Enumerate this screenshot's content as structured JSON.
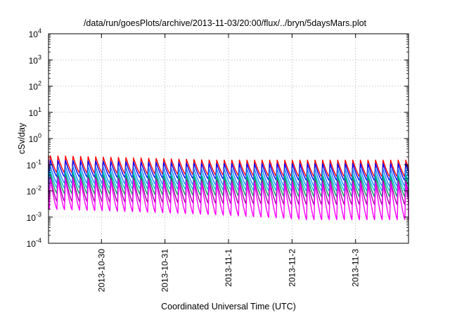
{
  "chart_data": {
    "type": "line",
    "title": "/data/run/goesPlots/archive/2013-11-03/20:00/flux/../bryn/5daysMars.plot",
    "xlabel": "Coordinated Universal Time (UTC)",
    "ylabel": "cSv/day",
    "yscale": "log",
    "ylim": [
      0.0001,
      10000
    ],
    "xlim": [
      "2013-10-29T04:00",
      "2013-11-03T20:00"
    ],
    "grid": true,
    "legend": "none",
    "y_ticks": [
      {
        "base": "10",
        "exp": "-4",
        "value": 0.0001
      },
      {
        "base": "10",
        "exp": "-3",
        "value": 0.001
      },
      {
        "base": "10",
        "exp": "-2",
        "value": 0.01
      },
      {
        "base": "10",
        "exp": "-1",
        "value": 0.1
      },
      {
        "base": "10",
        "exp": "0",
        "value": 1
      },
      {
        "base": "10",
        "exp": "1",
        "value": 10
      },
      {
        "base": "10",
        "exp": "2",
        "value": 100
      },
      {
        "base": "10",
        "exp": "3",
        "value": 1000
      },
      {
        "base": "10",
        "exp": "4",
        "value": 10000
      }
    ],
    "x_ticks": [
      {
        "label": "2013-10-30",
        "value": "2013-10-30T00:00"
      },
      {
        "label": "2013-10-31",
        "value": "2013-10-31T00:00"
      },
      {
        "label": "2013-11-1",
        "value": "2013-11-01T00:00"
      },
      {
        "label": "2013-11-2",
        "value": "2013-11-02T00:00"
      },
      {
        "label": "2013-11-3",
        "value": "2013-11-03T00:00"
      }
    ],
    "periodic_pattern": {
      "cycles_per_day": 8.4,
      "first_rise": "2013-10-29T04:20",
      "description_free": true
    },
    "series": [
      {
        "color": "#ff0000",
        "peak": [
          0.22,
          0.15
        ],
        "trough": [
          0.05,
          0.035
        ]
      },
      {
        "color": "#0000ff",
        "peak": [
          0.15,
          0.11
        ],
        "trough": [
          0.035,
          0.025
        ]
      },
      {
        "color": "#2080ff",
        "peak": [
          0.09,
          0.07
        ],
        "trough": [
          0.02,
          0.015
        ]
      },
      {
        "color": "#00c0e0",
        "peak": [
          0.06,
          0.045
        ],
        "trough": [
          0.013,
          0.01
        ]
      },
      {
        "color": "#00a060",
        "peak": [
          0.045,
          0.035
        ],
        "trough": [
          0.008,
          0.006
        ]
      },
      {
        "color": "#a000a0",
        "peak": [
          0.035,
          0.025
        ],
        "trough": [
          0.004,
          0.003
        ]
      },
      {
        "color": "#ff00ff",
        "peak": [
          0.03,
          0.02
        ],
        "trough": [
          0.002,
          0.0008
        ]
      }
    ]
  }
}
